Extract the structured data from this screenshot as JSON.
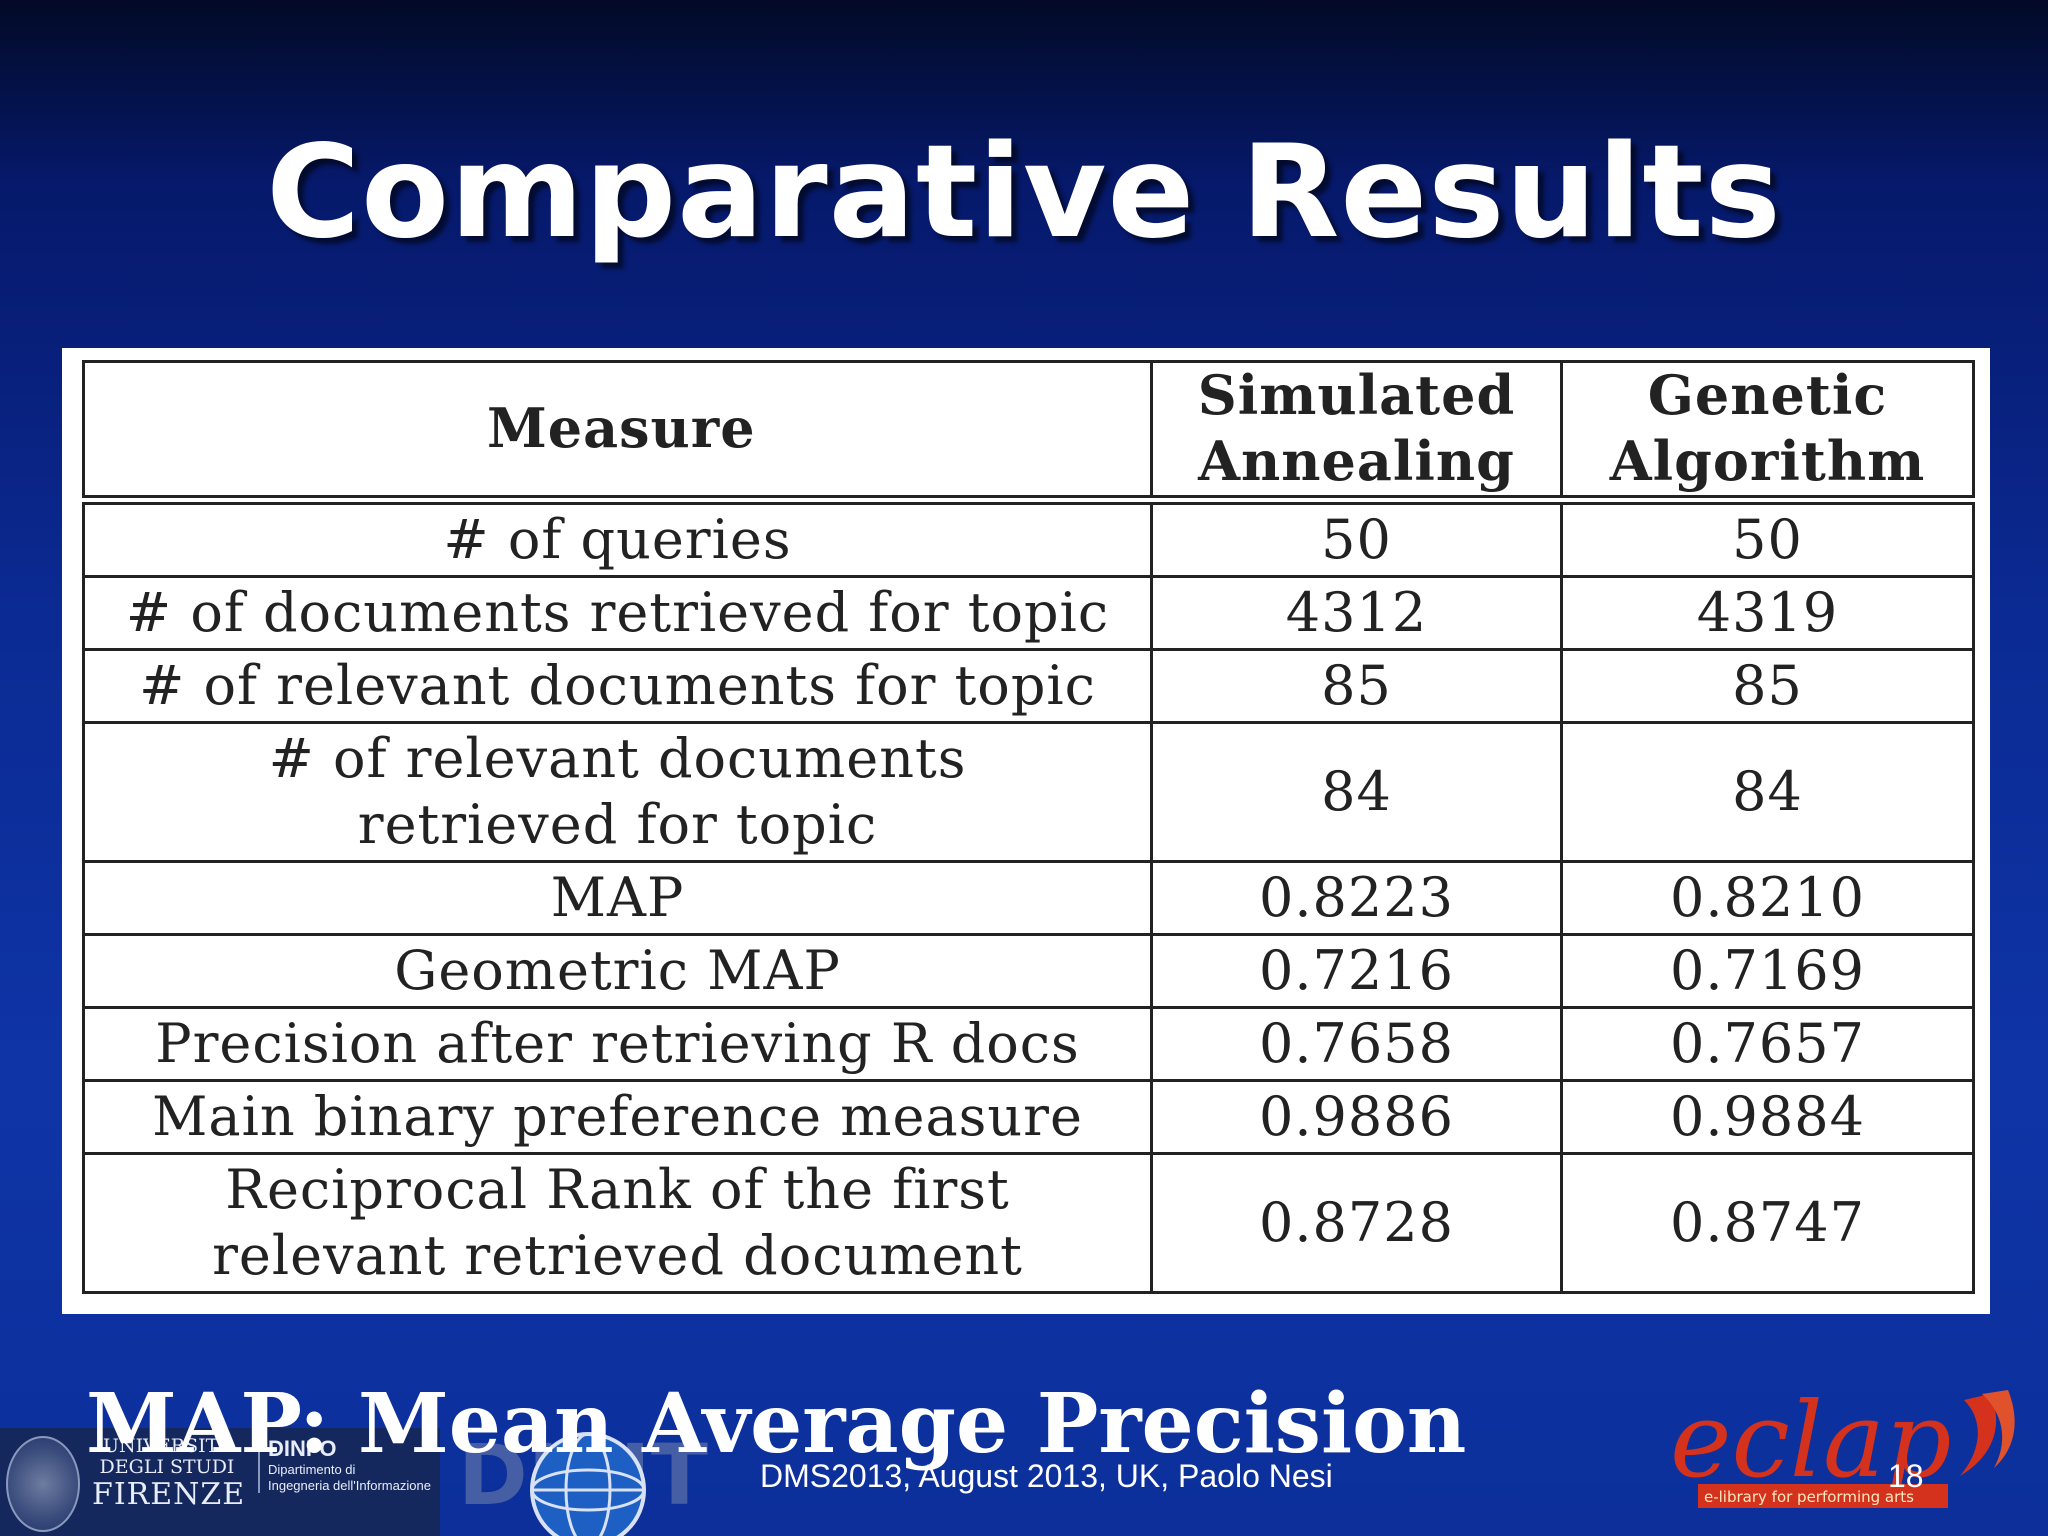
{
  "slide": {
    "title": "Comparative Results",
    "footnote": "MAP: Mean Average Precision",
    "footer": "DMS2013, August 2013, UK, Paolo Nesi",
    "page_number": "18"
  },
  "table": {
    "headers": {
      "measure": "Measure",
      "col1_line1": "Simulated",
      "col1_line2": "Annealing",
      "col2_line1": "Genetic",
      "col2_line2": "Algorithm"
    },
    "rows": [
      {
        "measure": "# of queries",
        "sa": "50",
        "ga": "50"
      },
      {
        "measure": "# of documents retrieved for topic",
        "sa": "4312",
        "ga": "4319"
      },
      {
        "measure": "# of relevant documents for topic",
        "sa": "85",
        "ga": "85"
      },
      {
        "measure_line1": "# of relevant documents",
        "measure_line2": "retrieved for topic",
        "sa": "84",
        "ga": "84"
      },
      {
        "measure": "MAP",
        "sa": "0.8223",
        "ga": "0.8210"
      },
      {
        "measure": "Geometric MAP",
        "sa": "0.7216",
        "ga": "0.7169"
      },
      {
        "measure": "Precision after retrieving R docs",
        "sa": "0.7658",
        "ga": "0.7657"
      },
      {
        "measure": "Main binary preference measure",
        "sa": "0.9886",
        "ga": "0.9884"
      },
      {
        "measure_line1": "Reciprocal Rank of the first",
        "measure_line2": "relevant retrieved document",
        "sa": "0.8728",
        "ga": "0.8747"
      }
    ]
  },
  "logos": {
    "unifi": {
      "line1": "UNIVERSITÀ",
      "line2": "DEGLI STUDI",
      "line3": "FIRENZE",
      "dept_brand": "DINFO",
      "dept_line1": "Dipartimento di",
      "dept_line2": "Ingegneria dell'Informazione"
    },
    "disit": {
      "text": "DISIT"
    },
    "eclap": {
      "name": "eclap",
      "tagline": "e-library for performing arts"
    }
  },
  "colors": {
    "background": "#0e34a6",
    "title": "#ffffff",
    "eclap": "#d4321c"
  }
}
